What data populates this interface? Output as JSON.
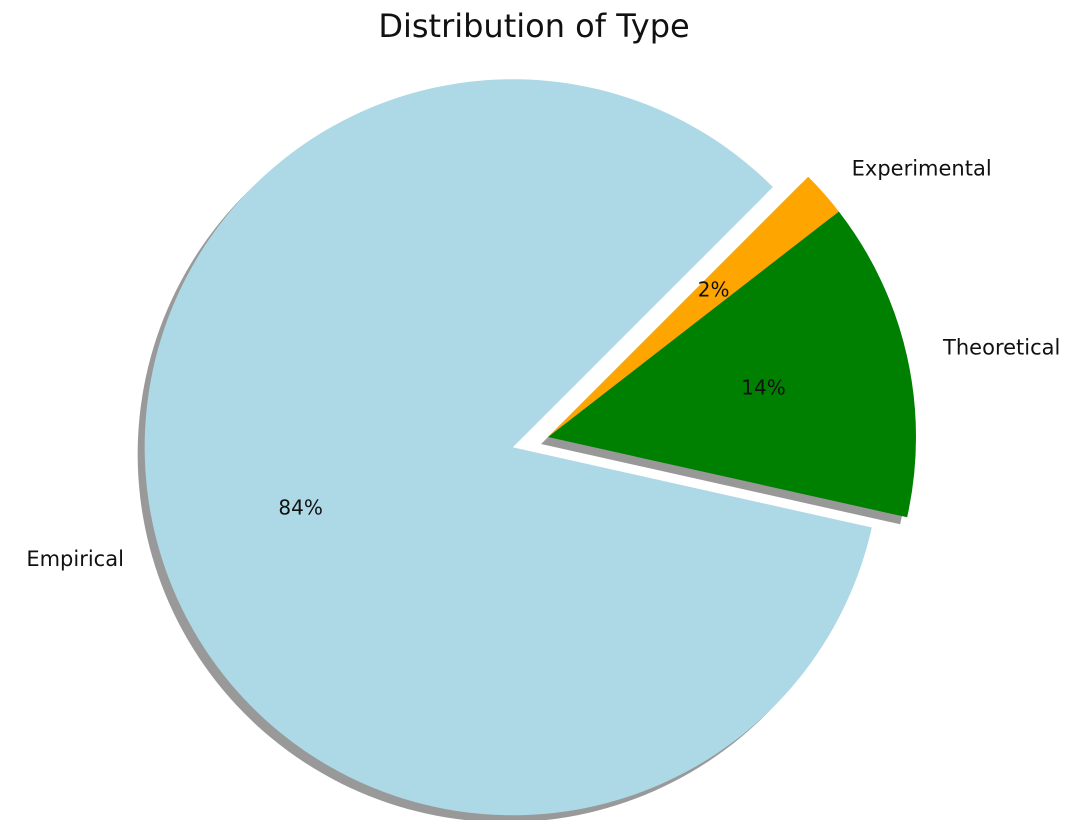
{
  "chart_data": {
    "type": "pie",
    "title": "Distribution of Type",
    "categories": [
      "Empirical",
      "Theoretical",
      "Experimental"
    ],
    "values": [
      84,
      14,
      2
    ],
    "value_labels": [
      "84%",
      "14%",
      "2%"
    ],
    "colors": [
      "#add8e6",
      "#008000",
      "#ffa500"
    ],
    "explode": [
      0.1,
      0,
      0
    ],
    "start_angle": 45,
    "shadow": true
  }
}
